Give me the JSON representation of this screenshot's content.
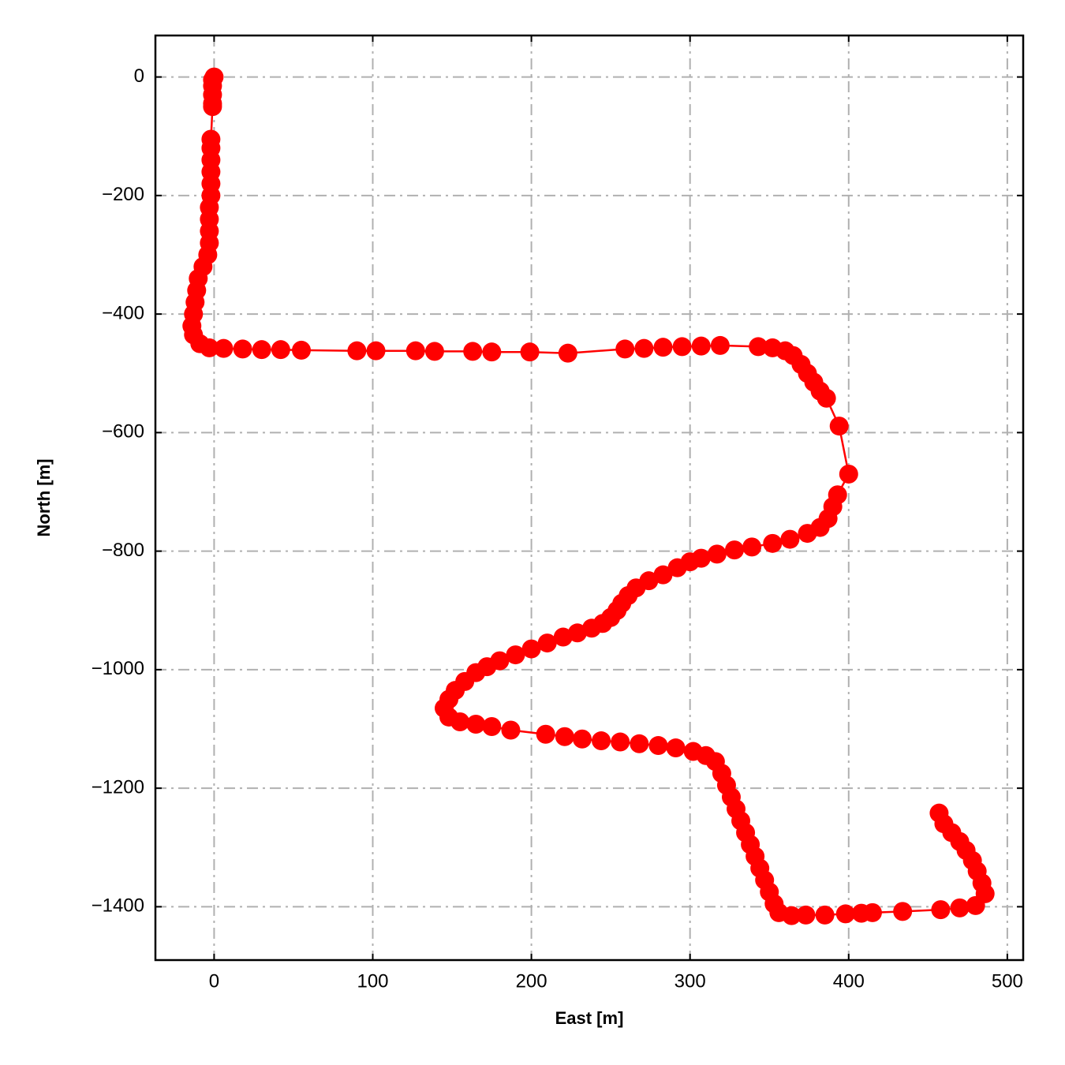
{
  "chart_data": {
    "type": "line",
    "xlabel": "East [m]",
    "ylabel": "North [m]",
    "color": "#ff0000",
    "grid": true,
    "xlim": [
      -37,
      510
    ],
    "ylim": [
      -1490,
      70
    ],
    "xticks": [
      0,
      100,
      200,
      300,
      400,
      500
    ],
    "yticks": [
      {
        "value": -1400,
        "label": "−1400"
      },
      {
        "value": -1200,
        "label": "−1200"
      },
      {
        "value": -1000,
        "label": "−1000"
      },
      {
        "value": -800,
        "label": "−800"
      },
      {
        "value": -600,
        "label": "−600"
      },
      {
        "value": -400,
        "label": "−400"
      },
      {
        "value": -200,
        "label": "−200"
      },
      0
    ],
    "x": [
      0,
      -1,
      -1,
      -1,
      -1,
      -1,
      -2,
      -2,
      -2,
      -2,
      -2,
      -2,
      -3,
      -3,
      -3,
      -3,
      -4,
      -7,
      -10,
      -11,
      -12,
      -13,
      -14,
      -13,
      -9,
      -3,
      6,
      18,
      30,
      42,
      55,
      90,
      102,
      127,
      139,
      163,
      175,
      199,
      223,
      259,
      271,
      283,
      295,
      307,
      319,
      343,
      352,
      360,
      365,
      370,
      374,
      378,
      382,
      386,
      394,
      400,
      393,
      390,
      387,
      382,
      374,
      363,
      352,
      339,
      328,
      317,
      307,
      300,
      292,
      283,
      274,
      266,
      261,
      257,
      254,
      250,
      245,
      238,
      229,
      220,
      210,
      200,
      190,
      180,
      172,
      165,
      158,
      152,
      148,
      145,
      148,
      155,
      165,
      175,
      187,
      209,
      221,
      232,
      244,
      256,
      268,
      280,
      291,
      302,
      310,
      316,
      320,
      323,
      326,
      329,
      332,
      335,
      338,
      341,
      344,
      347,
      350,
      353,
      356,
      364,
      373,
      385,
      398,
      408,
      415,
      434,
      458,
      470,
      480,
      486,
      484,
      481,
      478,
      474,
      470,
      465,
      460,
      457
    ],
    "values": [
      0,
      -5,
      -15,
      -30,
      -45,
      -50,
      -105,
      -120,
      -140,
      -160,
      -180,
      -200,
      -220,
      -240,
      -260,
      -280,
      -300,
      -320,
      -340,
      -360,
      -380,
      -400,
      -420,
      -435,
      -450,
      -457,
      -458,
      -459,
      -460,
      -460,
      -461,
      -462,
      -462,
      -462,
      -463,
      -463,
      -464,
      -464,
      -466,
      -459,
      -458,
      -456,
      -455,
      -454,
      -453,
      -455,
      -457,
      -462,
      -470,
      -485,
      -500,
      -515,
      -530,
      -542,
      -589,
      -670,
      -705,
      -725,
      -745,
      -760,
      -770,
      -780,
      -787,
      -793,
      -798,
      -805,
      -812,
      -818,
      -828,
      -840,
      -850,
      -862,
      -875,
      -888,
      -900,
      -912,
      -922,
      -930,
      -938,
      -945,
      -955,
      -965,
      -975,
      -985,
      -995,
      -1005,
      -1020,
      -1035,
      -1050,
      -1065,
      -1080,
      -1088,
      -1092,
      -1096,
      -1102,
      -1109,
      -1113,
      -1117,
      -1120,
      -1122,
      -1125,
      -1128,
      -1132,
      -1138,
      -1145,
      -1155,
      -1175,
      -1195,
      -1215,
      -1235,
      -1255,
      -1275,
      -1295,
      -1315,
      -1335,
      -1355,
      -1375,
      -1395,
      -1410,
      -1415,
      -1414,
      -1414,
      -1412,
      -1411,
      -1410,
      -1408,
      -1405,
      -1402,
      -1398,
      -1378,
      -1360,
      -1340,
      -1322,
      -1305,
      -1290,
      -1275,
      -1260,
      -1242
    ]
  }
}
